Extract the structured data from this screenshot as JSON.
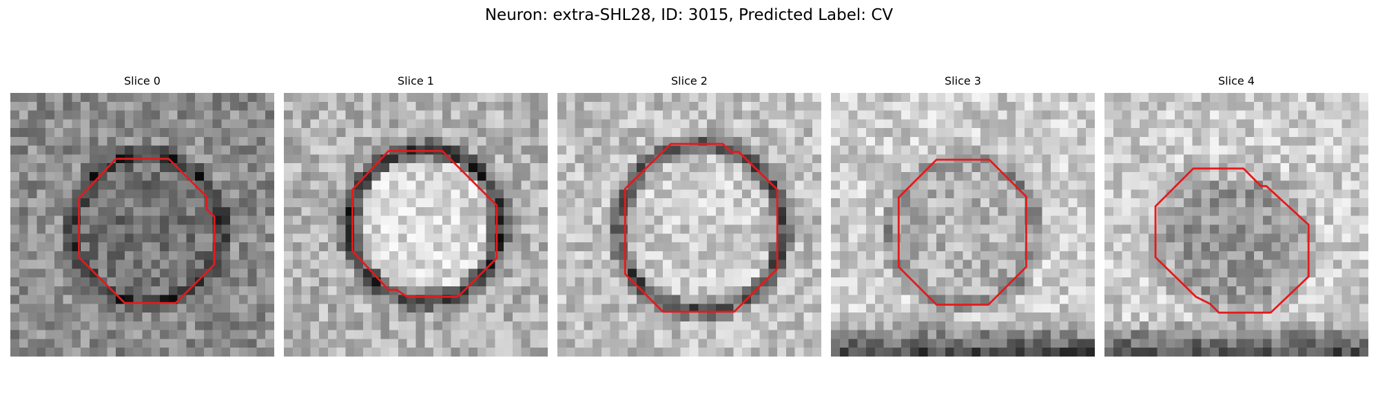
{
  "figure": {
    "title": "Neuron: extra-SHL28, ID: 3015, Predicted Label: CV"
  },
  "image_style": {
    "colormap": "grayscale",
    "grid_size": 30,
    "contour_color": "#e41a1c",
    "contour_shape": "octagon"
  },
  "panels": [
    {
      "title": "Slice 0"
    },
    {
      "title": "Slice 1"
    },
    {
      "title": "Slice 2"
    },
    {
      "title": "Slice 3"
    },
    {
      "title": "Slice 4"
    }
  ]
}
